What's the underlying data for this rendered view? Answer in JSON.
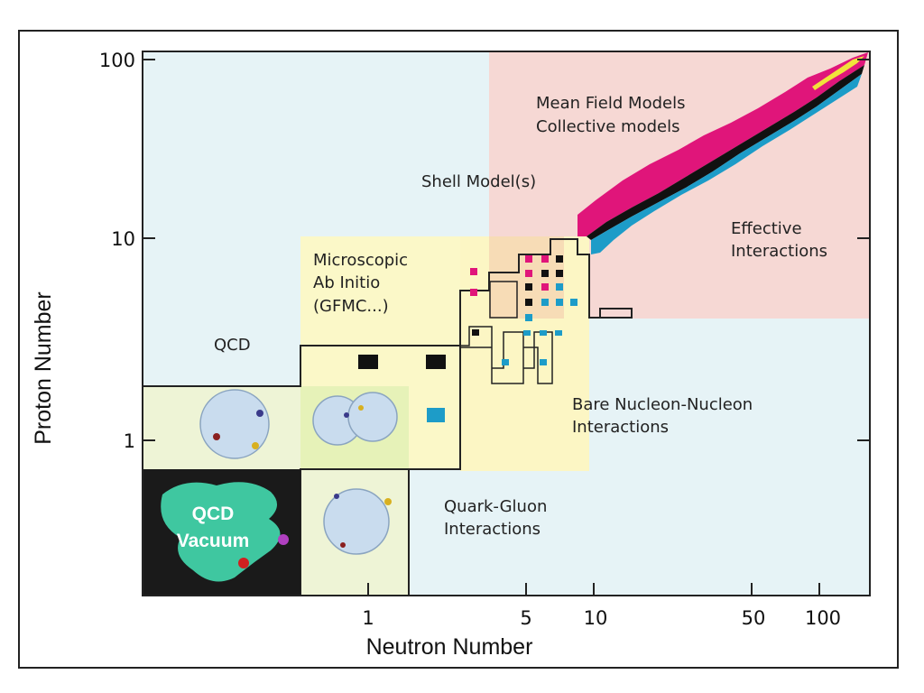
{
  "axes": {
    "x_label": "Neutron Number",
    "y_label": "Proton Number",
    "x_ticks": [
      "1",
      "5",
      "10",
      "50",
      "100"
    ],
    "y_ticks": [
      "100",
      "10",
      "1"
    ],
    "scale": "log"
  },
  "regions": {
    "mean_field": [
      "Mean Field Models",
      "Collective models"
    ],
    "shell": "Shell Model(s)",
    "effective": [
      "Effective",
      "Interactions"
    ],
    "microscopic": [
      "Microscopic",
      "Ab Initio",
      "(GFMC...)"
    ],
    "qcd": "QCD",
    "bare_nn": [
      "Bare Nucleon-Nucleon",
      "Interactions"
    ],
    "quark_gluon": [
      "Quark-Gluon",
      "Interactions"
    ],
    "vacuum": [
      "QCD",
      "Vacuum"
    ]
  },
  "colors": {
    "qcd_region": "#e6f3f6",
    "mean_field_region": "#f6d8d4",
    "ab_initio_region": "#fbf8c8",
    "bare_nn_region": "#fcf6c4",
    "qcd_pale_green": "#eef4d6",
    "stable": "#111111",
    "proton_rich": "#e0157a",
    "neutron_rich": "#1d9cc8",
    "vacuum_bg": "#1a1a1a",
    "vacuum_blob": "#3fc7a0"
  }
}
